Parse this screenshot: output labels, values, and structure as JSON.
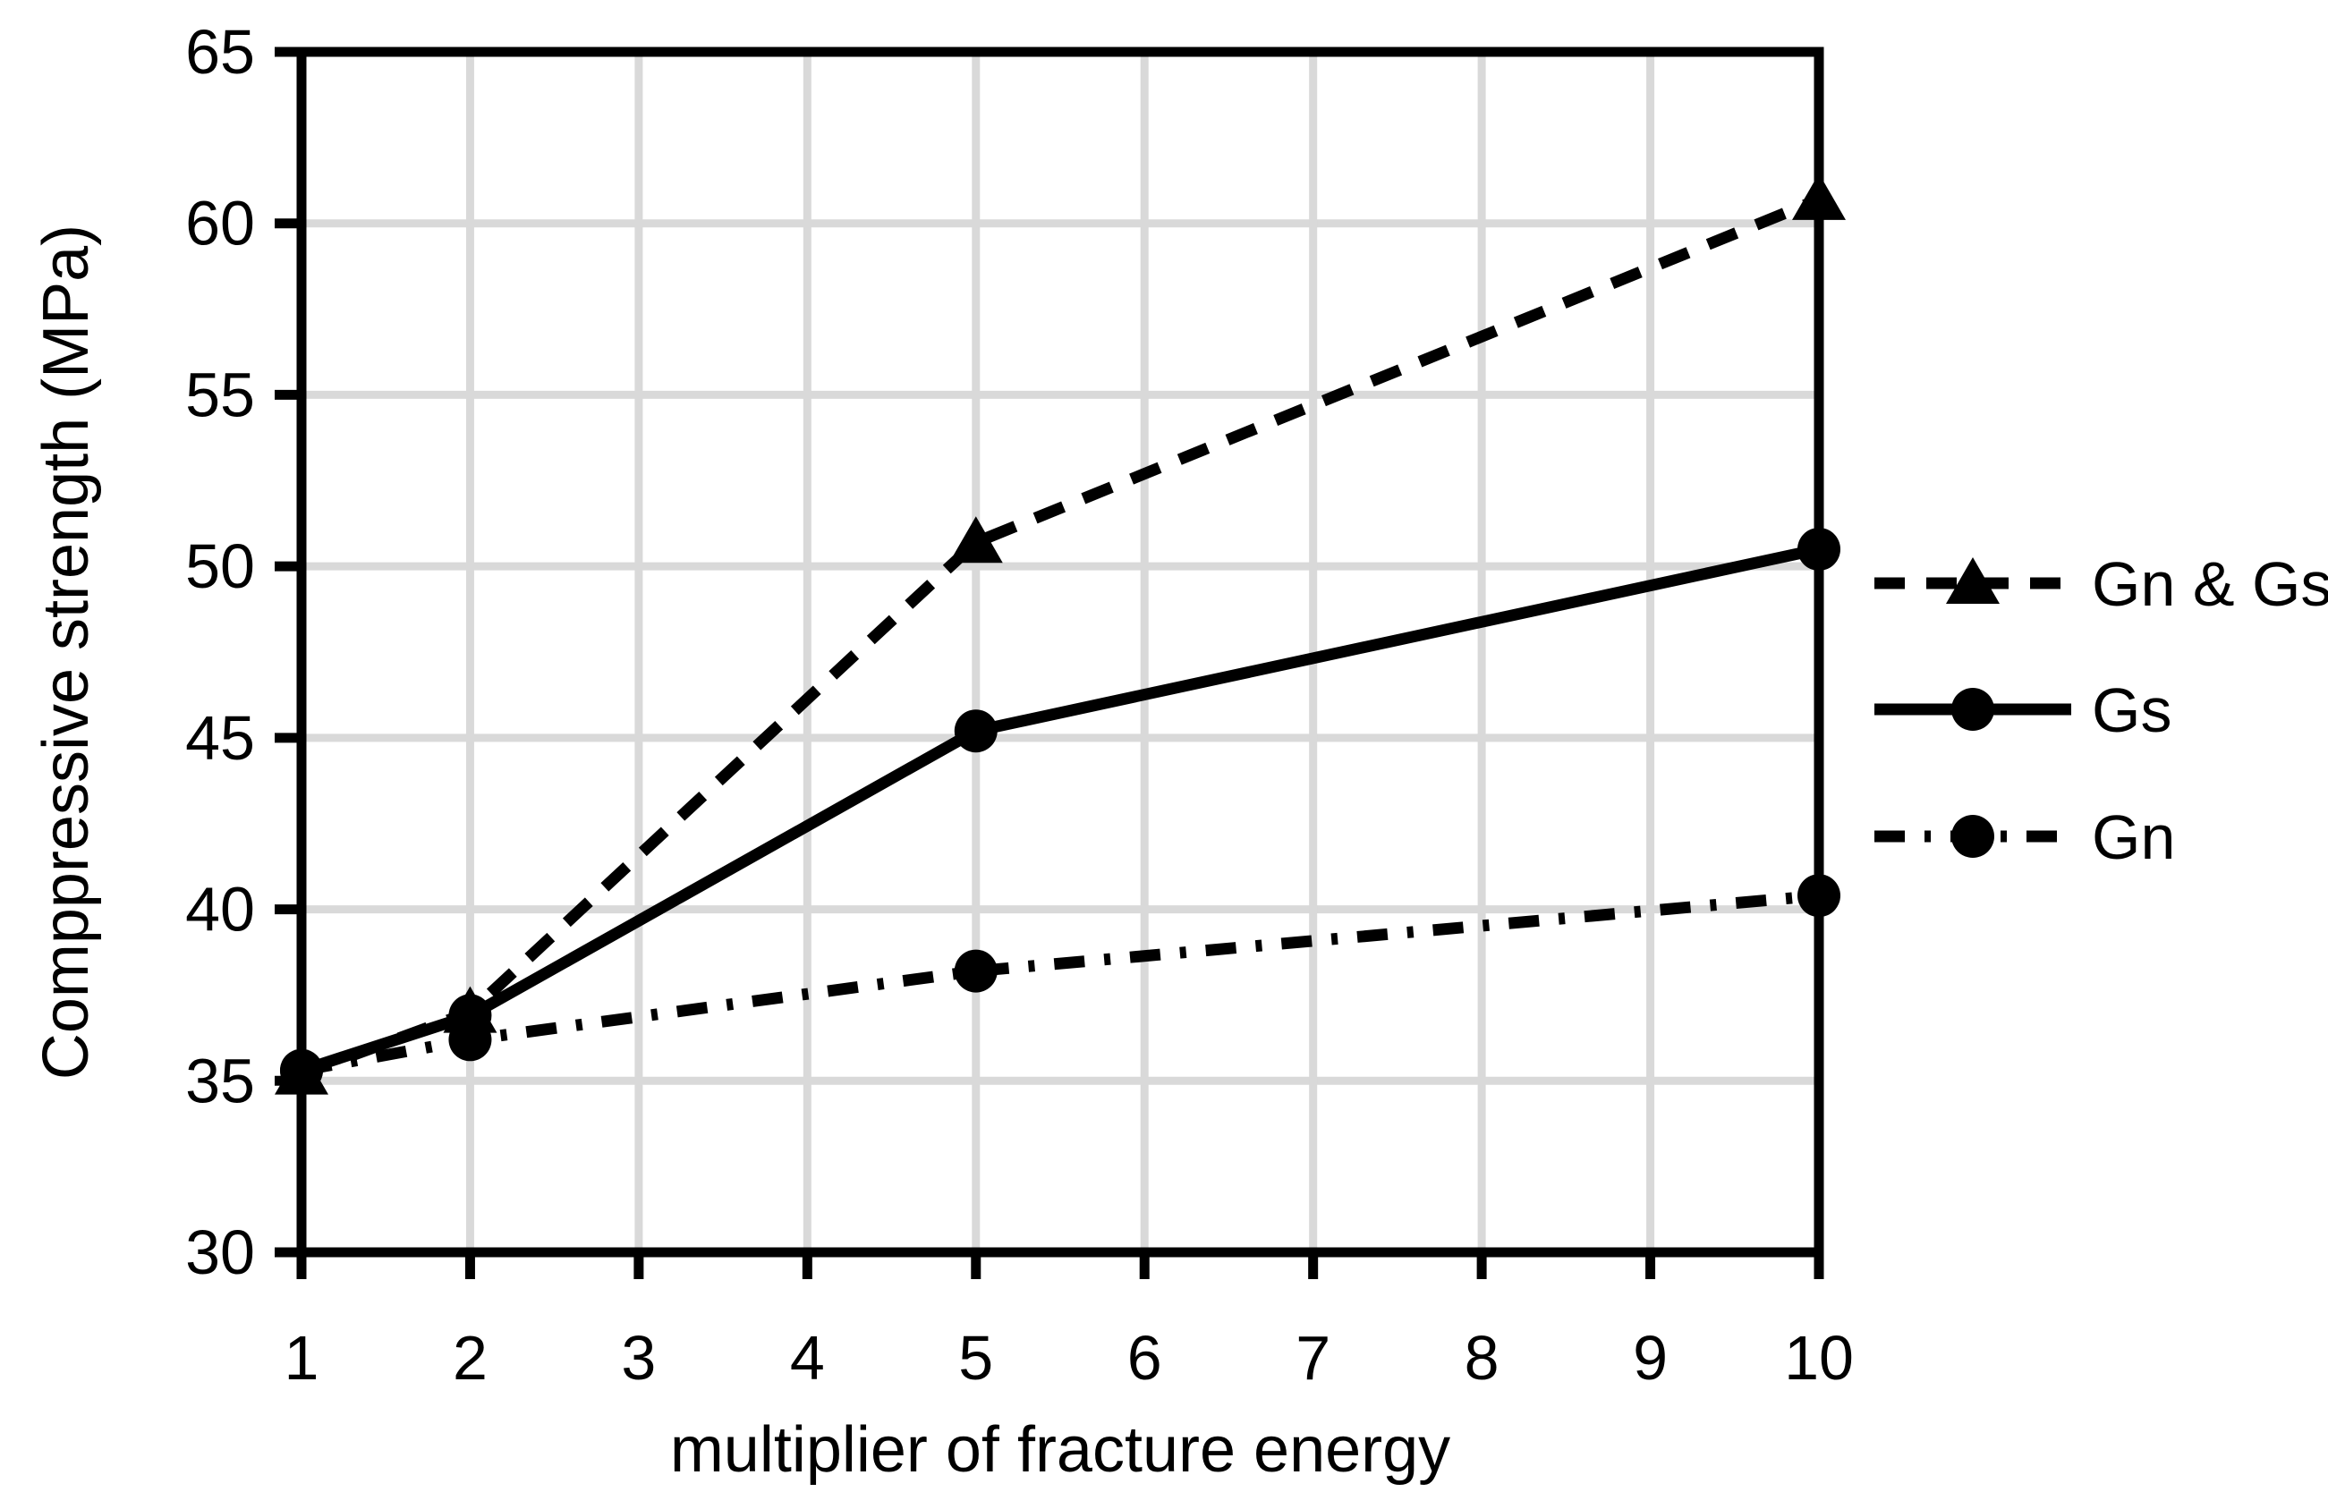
{
  "chart_data": {
    "type": "line",
    "title": "",
    "xlabel": "multiplier of fracture energy",
    "ylabel": "Comppressive strength (MPa)",
    "xlim": [
      1,
      10
    ],
    "ylim": [
      30,
      65
    ],
    "x_ticks": [
      1,
      2,
      3,
      4,
      5,
      6,
      7,
      8,
      9,
      10
    ],
    "y_ticks": [
      30,
      35,
      40,
      45,
      50,
      55,
      60,
      65
    ],
    "grid": true,
    "legend_position": "right-outside",
    "x": [
      1,
      2,
      5,
      10
    ],
    "series": [
      {
        "name": "Gn & Gs",
        "values": [
          35.2,
          37.0,
          50.7,
          60.7
        ],
        "line_style": "dashed",
        "marker": "triangle"
      },
      {
        "name": "Gs",
        "values": [
          35.3,
          36.9,
          45.2,
          50.5
        ],
        "line_style": "solid",
        "marker": "circle"
      },
      {
        "name": "Gn",
        "values": [
          35.3,
          36.2,
          38.2,
          40.4
        ],
        "line_style": "dashdot",
        "marker": "circle"
      }
    ],
    "colors": {
      "series": "#000000",
      "grid": "#d9d9d9",
      "axis": "#000000",
      "background": "#ffffff"
    }
  }
}
